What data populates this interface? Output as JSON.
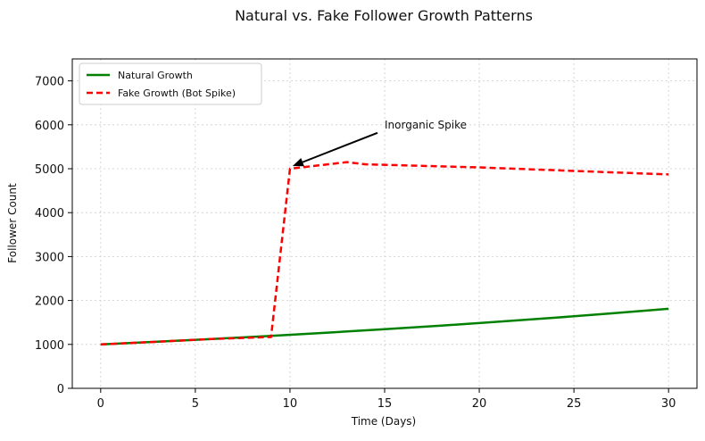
{
  "chart_data": {
    "type": "line",
    "title": "Natural vs. Fake Follower Growth Patterns",
    "xlabel": "Time (Days)",
    "ylabel": "Follower Count",
    "xlim": [
      -1.5,
      31.5
    ],
    "ylim": [
      0,
      7500
    ],
    "x_ticks": [
      0,
      5,
      10,
      15,
      20,
      25,
      30
    ],
    "y_ticks": [
      0,
      1000,
      2000,
      3000,
      4000,
      5000,
      6000,
      7000
    ],
    "grid": true,
    "legend_position": "top-left",
    "series": [
      {
        "name": "Natural Growth",
        "color": "#008000",
        "style": "solid",
        "x": [
          0,
          3,
          6,
          9,
          12,
          15,
          18,
          21,
          24,
          27,
          30
        ],
        "y": [
          1000,
          1061,
          1126,
          1195,
          1268,
          1346,
          1428,
          1516,
          1608,
          1707,
          1811
        ]
      },
      {
        "name": "Fake Growth (Bot Spike)",
        "color": "#ff0000",
        "style": "dashed",
        "x": [
          0,
          3,
          6,
          9,
          10,
          13,
          14,
          20,
          30
        ],
        "y": [
          1000,
          1061,
          1126,
          1168,
          5000,
          5150,
          5100,
          5030,
          4870
        ]
      }
    ],
    "annotations": [
      {
        "text": "Inorganic Spike",
        "x": 10,
        "y": 5000,
        "text_x": 15,
        "text_y": 6000
      }
    ]
  }
}
